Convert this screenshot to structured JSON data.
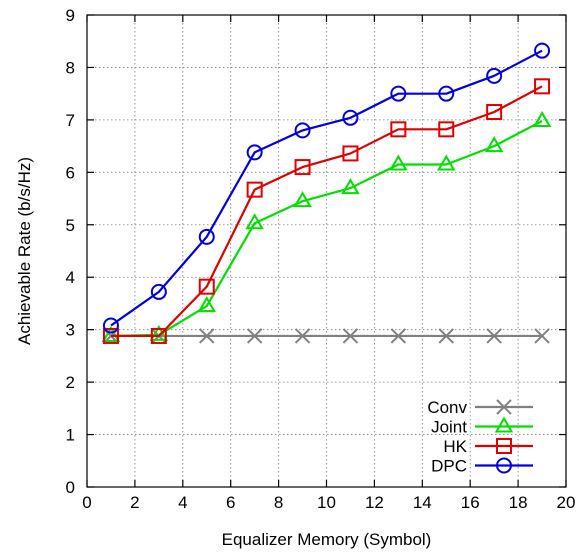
{
  "chart_data": {
    "type": "line",
    "title": "",
    "xlabel": "Equalizer Memory (Symbol)",
    "ylabel": "Achievable Rate (b/s/Hz)",
    "xlim": [
      0,
      20
    ],
    "ylim": [
      0,
      9
    ],
    "xticks": [
      "0",
      "2",
      "4",
      "6",
      "8",
      "10",
      "12",
      "14",
      "16",
      "18",
      "20"
    ],
    "yticks": [
      "0",
      "1",
      "2",
      "3",
      "4",
      "5",
      "6",
      "7",
      "8",
      "9"
    ],
    "grid": true,
    "legend_position": "bottom-right",
    "x": [
      1,
      3,
      5,
      7,
      9,
      11,
      13,
      15,
      17,
      19
    ],
    "series": [
      {
        "name": "Conv",
        "marker": "x",
        "color": "#808080",
        "values": [
          2.88,
          2.88,
          2.88,
          2.88,
          2.88,
          2.88,
          2.88,
          2.88,
          2.88,
          2.88
        ]
      },
      {
        "name": "Joint",
        "marker": "triangle",
        "color": "#00e000",
        "values": [
          2.88,
          2.9,
          3.45,
          5.03,
          5.45,
          5.7,
          6.15,
          6.15,
          6.5,
          6.98
        ]
      },
      {
        "name": "HK",
        "marker": "square",
        "color": "#e00000",
        "values": [
          2.88,
          2.88,
          3.82,
          5.67,
          6.1,
          6.36,
          6.82,
          6.82,
          7.15,
          7.64
        ]
      },
      {
        "name": "DPC",
        "marker": "circle",
        "color": "#0000e0",
        "values": [
          3.08,
          3.72,
          4.77,
          6.38,
          6.8,
          7.04,
          7.5,
          7.5,
          7.84,
          8.32
        ]
      }
    ]
  }
}
